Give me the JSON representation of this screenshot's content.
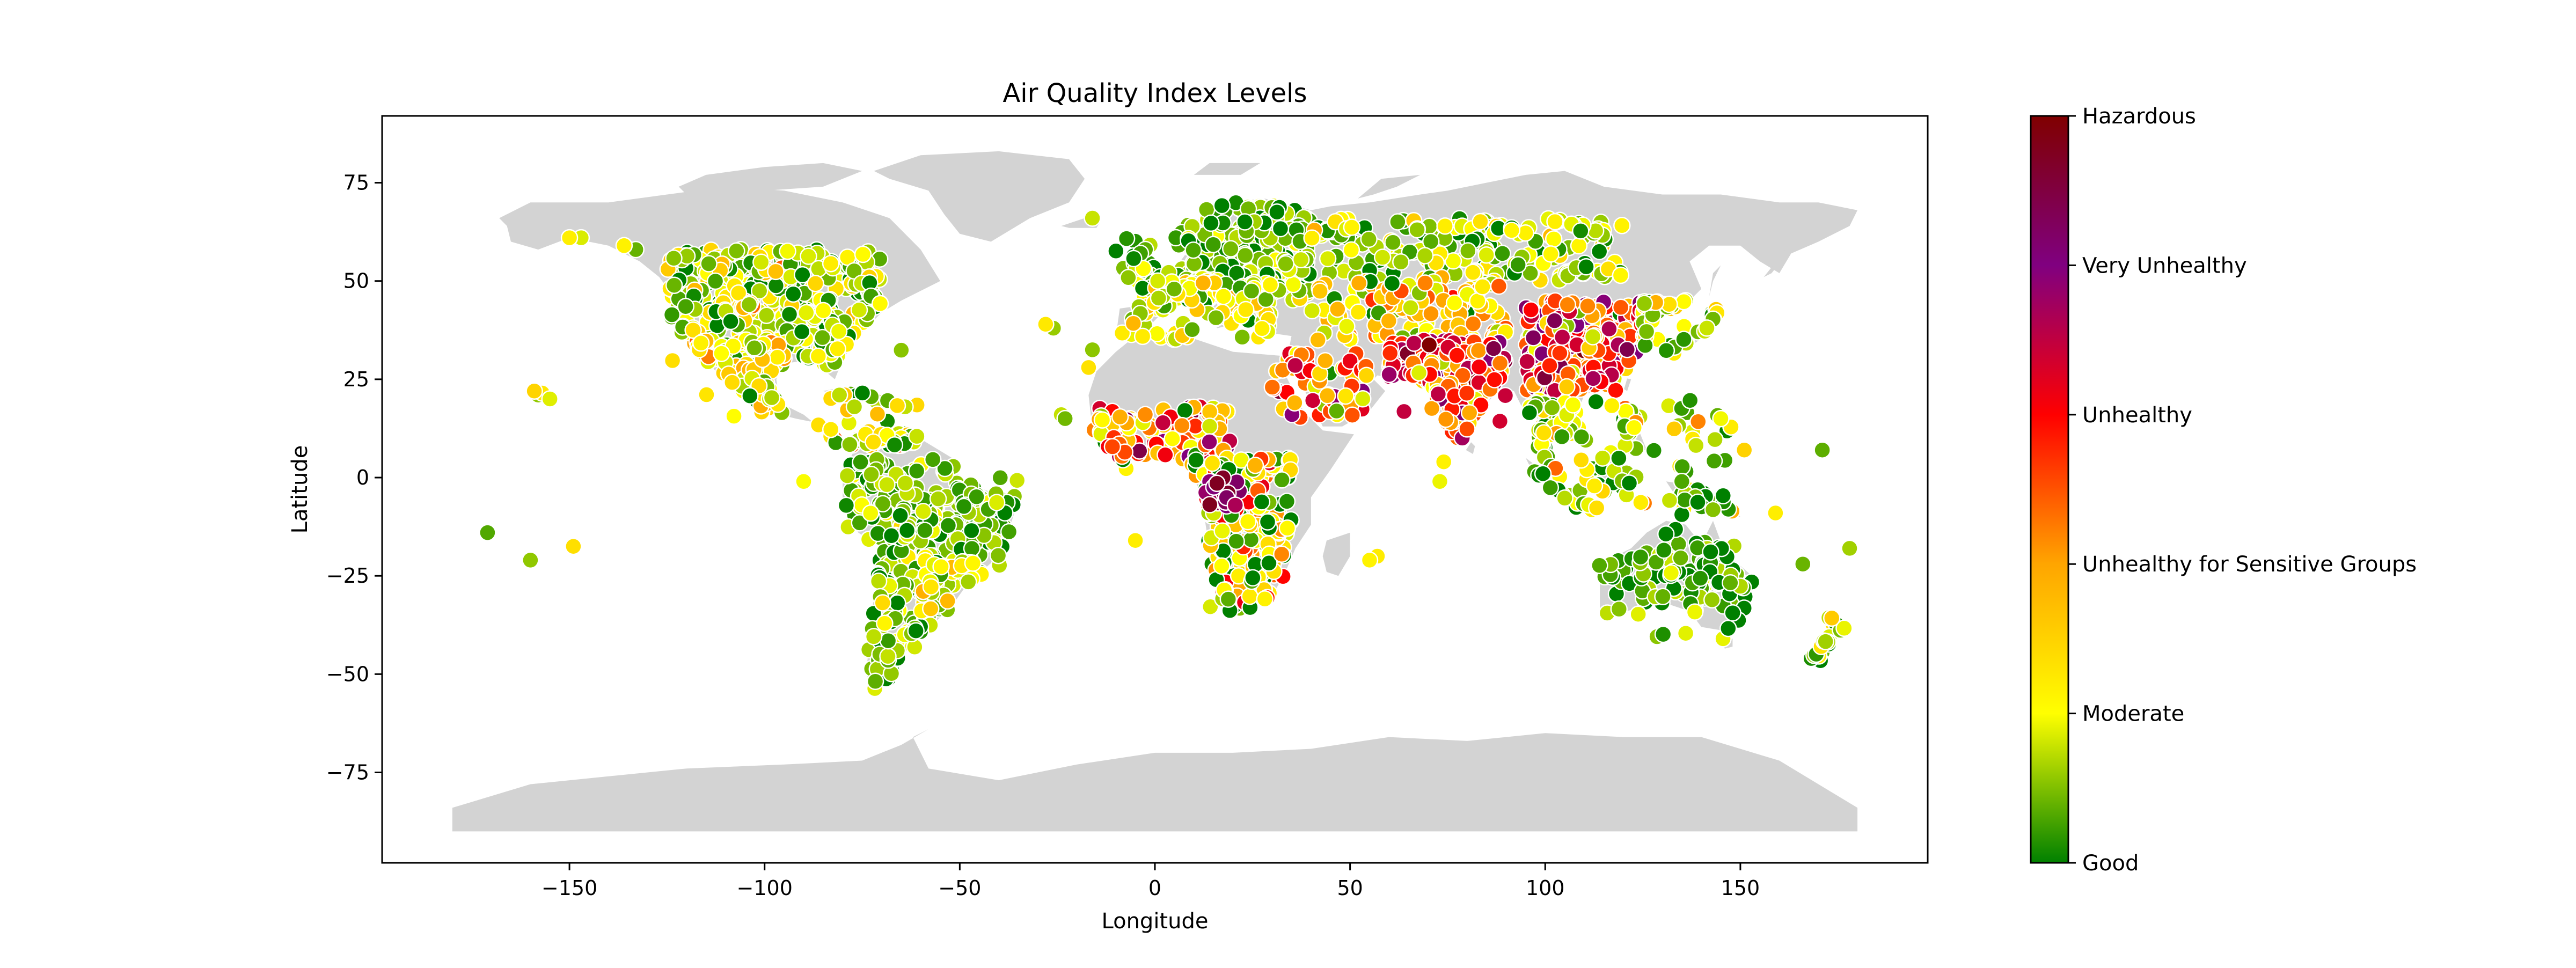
{
  "chart_data": {
    "type": "scatter",
    "title": "Air Quality Index Levels",
    "xlabel": "Longitude",
    "ylabel": "Latitude",
    "xlim": [
      -198,
      198
    ],
    "ylim": [
      -98,
      92
    ],
    "xticks": [
      -150,
      -100,
      -50,
      0,
      50,
      100,
      150
    ],
    "yticks": [
      -75,
      -50,
      -25,
      0,
      25,
      50,
      75
    ],
    "xtick_labels": [
      "−150",
      "−100",
      "−50",
      "0",
      "50",
      "100",
      "150"
    ],
    "ytick_labels": [
      "−75",
      "−50",
      "−25",
      "0",
      "25",
      "50",
      "75"
    ],
    "colorbar": {
      "levels": [
        "Good",
        "Moderate",
        "Unhealthy for Sensitive Groups",
        "Unhealthy",
        "Very Unhealthy",
        "Hazardous"
      ],
      "colors": [
        "#008000",
        "#ffff00",
        "#ffa500",
        "#ff0000",
        "#800080",
        "#800000"
      ]
    },
    "land_color": "#d3d3d3",
    "point_regions": [
      {
        "lon": [
          -125,
          -70
        ],
        "lat": [
          28,
          58
        ],
        "n": 380,
        "aqi": 0.15,
        "spread": 0.12
      },
      {
        "lon": [
          -118,
          -95
        ],
        "lat": [
          15,
          35
        ],
        "n": 90,
        "aqi": 0.22,
        "spread": 0.14
      },
      {
        "lon": [
          -90,
          -60
        ],
        "lat": [
          8,
          22
        ],
        "n": 60,
        "aqi": 0.2,
        "spread": 0.14
      },
      {
        "lon": [
          -80,
          -35
        ],
        "lat": [
          -25,
          5
        ],
        "n": 260,
        "aqi": 0.08,
        "spread": 0.08
      },
      {
        "lon": [
          -75,
          -55
        ],
        "lat": [
          -55,
          -25
        ],
        "n": 80,
        "aqi": 0.12,
        "spread": 0.1
      },
      {
        "lon": [
          -60,
          -45
        ],
        "lat": [
          -35,
          -20
        ],
        "n": 40,
        "aqi": 0.22,
        "spread": 0.1
      },
      {
        "lon": [
          -10,
          40
        ],
        "lat": [
          45,
          70
        ],
        "n": 300,
        "aqi": 0.08,
        "spread": 0.08
      },
      {
        "lon": [
          -10,
          30
        ],
        "lat": [
          35,
          50
        ],
        "n": 120,
        "aqi": 0.2,
        "spread": 0.12
      },
      {
        "lon": [
          40,
          120
        ],
        "lat": [
          50,
          66
        ],
        "n": 180,
        "aqi": 0.12,
        "spread": 0.1
      },
      {
        "lon": [
          40,
          90
        ],
        "lat": [
          35,
          50
        ],
        "n": 120,
        "aqi": 0.3,
        "spread": 0.15
      },
      {
        "lon": [
          -18,
          20
        ],
        "lat": [
          2,
          18
        ],
        "n": 120,
        "aqi": 0.42,
        "spread": 0.2
      },
      {
        "lon": [
          10,
          35
        ],
        "lat": [
          -35,
          5
        ],
        "n": 200,
        "aqi": 0.18,
        "spread": 0.22
      },
      {
        "lon": [
          12,
          22
        ],
        "lat": [
          -8,
          0
        ],
        "n": 20,
        "aqi": 0.85,
        "spread": 0.08
      },
      {
        "lon": [
          30,
          55
        ],
        "lat": [
          15,
          32
        ],
        "n": 60,
        "aqi": 0.45,
        "spread": 0.18
      },
      {
        "lon": [
          60,
          90
        ],
        "lat": [
          10,
          35
        ],
        "n": 220,
        "aqi": 0.6,
        "spread": 0.18
      },
      {
        "lon": [
          95,
          125
        ],
        "lat": [
          22,
          45
        ],
        "n": 240,
        "aqi": 0.55,
        "spread": 0.22
      },
      {
        "lon": [
          95,
          150
        ],
        "lat": [
          -10,
          20
        ],
        "n": 160,
        "aqi": 0.12,
        "spread": 0.14
      },
      {
        "lon": [
          113,
          153
        ],
        "lat": [
          -42,
          -12
        ],
        "n": 100,
        "aqi": 0.06,
        "spread": 0.07
      },
      {
        "lon": [
          166,
          179
        ],
        "lat": [
          -47,
          -35
        ],
        "n": 20,
        "aqi": 0.12,
        "spread": 0.12
      },
      {
        "lon": [
          125,
          145
        ],
        "lat": [
          30,
          45
        ],
        "n": 60,
        "aqi": 0.16,
        "spread": 0.1
      }
    ]
  }
}
